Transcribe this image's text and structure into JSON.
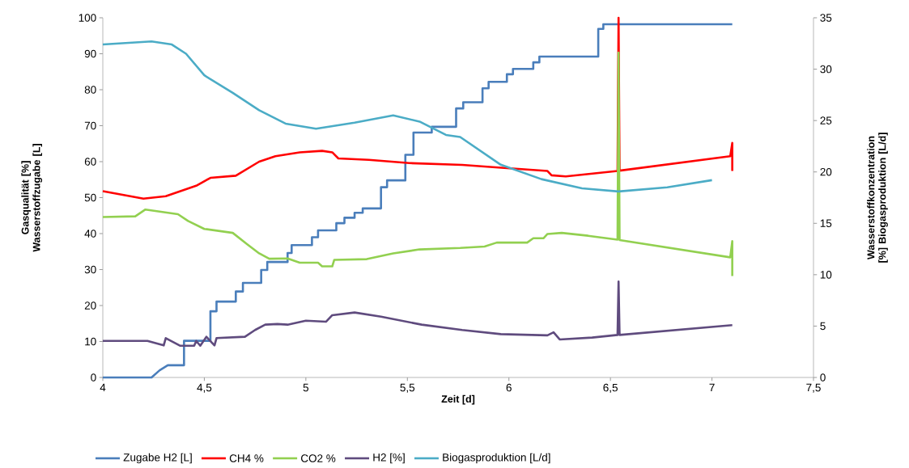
{
  "chart_data": {
    "type": "line",
    "xlabel": "Zeit [d]",
    "ylabel": "Gasqualität [%] Wasserstoffzugabe [L]",
    "y2label": "Wasserstoffkonzentration [%] Biogasproduktion [L/d]",
    "xlim": [
      4,
      7.5
    ],
    "xticks": [
      4,
      {
        "value": 4.5,
        "label": "4,5"
      },
      5,
      {
        "value": 5.5,
        "label": "5,5"
      },
      6,
      {
        "value": 6.5,
        "label": "6,5"
      },
      7,
      {
        "value": 7.5,
        "label": "7,5"
      }
    ],
    "ylim": [
      0,
      100
    ],
    "yticks": [
      0,
      10,
      20,
      30,
      40,
      50,
      60,
      70,
      80,
      90,
      100
    ],
    "y2lim": [
      0,
      35
    ],
    "y2ticks": [
      0,
      5,
      10,
      15,
      20,
      25,
      30,
      35
    ],
    "legend": "bottom",
    "marker": "none",
    "line_style": "solid",
    "series": [
      {
        "name": "Zugabe H2 [L]",
        "color": "#4a7ebb",
        "x": [
          4,
          4.24,
          4.28,
          4.32,
          4.4,
          4.4,
          4.53,
          4.53,
          4.56,
          4.56,
          4.655,
          4.655,
          4.69,
          4.69,
          4.78,
          4.78,
          4.81,
          4.81,
          4.91,
          4.91,
          4.93,
          4.93,
          5.03,
          5.03,
          5.06,
          5.06,
          5.15,
          5.15,
          5.19,
          5.19,
          5.24,
          5.24,
          5.28,
          5.28,
          5.37,
          5.37,
          5.4,
          5.4,
          5.49,
          5.49,
          5.53,
          5.53,
          5.62,
          5.62,
          5.74,
          5.74,
          5.775,
          5.775,
          5.87,
          5.87,
          5.9,
          5.9,
          5.99,
          5.99,
          6.02,
          6.02,
          6.12,
          6.12,
          6.15,
          6.15,
          6.44,
          6.44,
          6.465,
          6.465,
          7.1
        ],
        "values": [
          0,
          0,
          2,
          3.4,
          3.4,
          10.2,
          10.2,
          18.4,
          18.4,
          21.1,
          21.1,
          23.9,
          23.9,
          26.3,
          26.3,
          29.9,
          29.9,
          32.1,
          32.1,
          34.6,
          34.6,
          36.8,
          36.8,
          39,
          39,
          40.9,
          40.9,
          42.9,
          42.9,
          44.4,
          44.4,
          45.8,
          45.8,
          47,
          47,
          52.9,
          52.9,
          54.8,
          54.8,
          61.9,
          61.9,
          68.1,
          68.1,
          69.7,
          69.7,
          74.8,
          74.8,
          76.5,
          76.5,
          80.4,
          80.4,
          82.2,
          82.2,
          84.3,
          84.3,
          85.8,
          85.8,
          87.6,
          87.6,
          89.2,
          89.2,
          96.9,
          96.9,
          98.2,
          98.2
        ]
      },
      {
        "name": "CH4 %",
        "color": "#ff0000",
        "x": [
          4,
          4.2,
          4.31,
          4.46,
          4.53,
          4.655,
          4.77,
          4.85,
          4.97,
          5.08,
          5.13,
          5.16,
          5.31,
          5.51,
          5.77,
          5.92,
          6.19,
          6.21,
          6.28,
          6.535,
          6.54,
          6.545,
          7.09,
          7.1,
          7.1
        ],
        "values": [
          51.8,
          49.7,
          50.4,
          53.3,
          55.5,
          56.1,
          60,
          61.5,
          62.6,
          63,
          62.6,
          60.9,
          60.5,
          59.6,
          59.1,
          58.5,
          57.4,
          56.2,
          55.9,
          57.4,
          100,
          57.5,
          61.5,
          65.2,
          57.4
        ]
      },
      {
        "name": "CO2 %",
        "color": "#92d050",
        "x": [
          4,
          4.16,
          4.21,
          4.37,
          4.42,
          4.5,
          4.64,
          4.71,
          4.77,
          4.82,
          4.91,
          4.97,
          5.06,
          5.08,
          5.13,
          5.14,
          5.3,
          5.43,
          5.56,
          5.76,
          5.88,
          5.94,
          6.09,
          6.12,
          6.17,
          6.19,
          6.26,
          6.39,
          6.535,
          6.54,
          6.545,
          7.09,
          7.1,
          7.1
        ],
        "values": [
          44.6,
          44.8,
          46.7,
          45.4,
          43.5,
          41.3,
          40.2,
          37.1,
          34.5,
          33,
          33.1,
          31.9,
          31.9,
          30.9,
          30.9,
          32.7,
          32.9,
          34.5,
          35.6,
          36,
          36.4,
          37.5,
          37.5,
          38.7,
          38.7,
          39.9,
          40.2,
          39.4,
          38.3,
          90.3,
          38.2,
          33.4,
          37.9,
          28.2
        ]
      },
      {
        "name": "H2 [%]",
        "color": "#5f4b7e",
        "axis": "y2",
        "x": [
          4,
          4.22,
          4.3,
          4.31,
          4.38,
          4.45,
          4.46,
          4.48,
          4.51,
          4.55,
          4.56,
          4.7,
          4.75,
          4.8,
          4.86,
          4.91,
          5,
          5.1,
          5.13,
          5.24,
          5.37,
          5.57,
          5.77,
          5.96,
          6.19,
          6.22,
          6.25,
          6.41,
          6.535,
          6.54,
          6.545,
          7.1
        ],
        "values": [
          3.56,
          3.56,
          3.12,
          3.83,
          3.09,
          3.09,
          3.56,
          3.09,
          3.96,
          3.12,
          3.83,
          3.96,
          4.62,
          5.14,
          5.2,
          5.14,
          5.53,
          5.43,
          6.06,
          6.32,
          5.92,
          5.14,
          4.62,
          4.22,
          4.1,
          4.4,
          3.7,
          3.88,
          4.14,
          9.34,
          4.14,
          5.09
        ]
      },
      {
        "name": "Biogasproduktion [L/d]",
        "color": "#4bacc6",
        "axis": "y2",
        "x": [
          4,
          4.24,
          4.34,
          4.41,
          4.5,
          4.64,
          4.77,
          4.9,
          5.05,
          5.24,
          5.43,
          5.56,
          5.69,
          5.76,
          5.96,
          6.16,
          6.36,
          6.54,
          6.78,
          7
        ],
        "values": [
          32.4,
          32.7,
          32.4,
          31.5,
          29.4,
          27.7,
          26,
          24.7,
          24.2,
          24.8,
          25.5,
          24.9,
          23.6,
          23.4,
          20.7,
          19.3,
          18.4,
          18.1,
          18.5,
          19.2
        ]
      }
    ]
  }
}
